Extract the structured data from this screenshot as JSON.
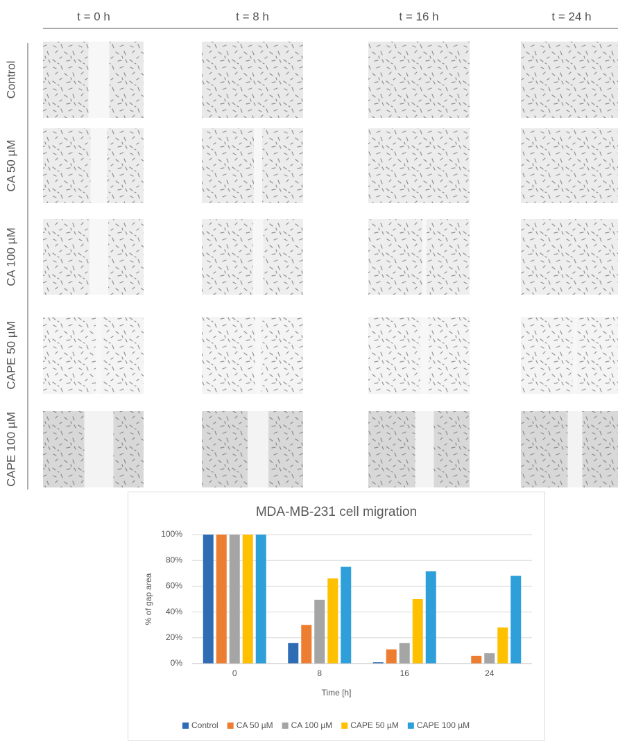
{
  "figure": {
    "columns": [
      "t = 0 h",
      "t = 8 h",
      "t = 16 h",
      "t = 24 h"
    ],
    "rows": [
      "Control",
      "CA 50 µM",
      "CA 100 µM",
      "CAPE 50 µM",
      "CAPE 100 µM"
    ]
  },
  "chart_data": {
    "type": "bar",
    "title": "MDA-MB-231 cell migration",
    "x_label": "Time [h]",
    "y_label": "% of gap area",
    "categories": [
      "0",
      "8",
      "16",
      "24"
    ],
    "series": [
      {
        "name": "Control",
        "color": "#2e6db4",
        "values": [
          100,
          16,
          1,
          0
        ]
      },
      {
        "name": "CA 50 µM",
        "color": "#ed7d31",
        "values": [
          100,
          30,
          11,
          6
        ]
      },
      {
        "name": "CA 100 µM",
        "color": "#a5a5a5",
        "values": [
          100,
          49.5,
          16,
          8
        ]
      },
      {
        "name": "CAPE 50 µM",
        "color": "#ffc000",
        "values": [
          100,
          66,
          50,
          28
        ]
      },
      {
        "name": "CAPE 100 µM",
        "color": "#2e9fd8",
        "values": [
          100,
          75,
          71.5,
          68
        ]
      }
    ],
    "ylim": [
      0,
      100
    ],
    "yticks": [
      {
        "value": 0,
        "label": "0%"
      },
      {
        "value": 20,
        "label": "20%"
      },
      {
        "value": 40,
        "label": "40%"
      },
      {
        "value": 60,
        "label": "60%"
      },
      {
        "value": 80,
        "label": "80%"
      },
      {
        "value": 100,
        "label": "100%"
      }
    ],
    "grid": true,
    "legend": "bottom"
  }
}
